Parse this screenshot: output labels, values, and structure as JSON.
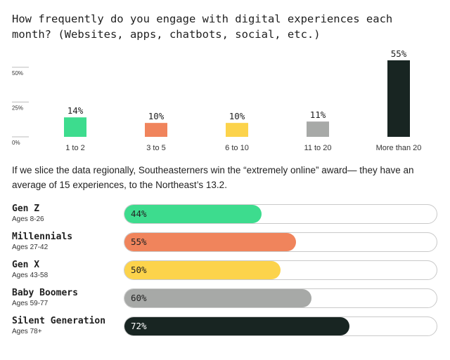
{
  "title": "How frequently do you engage with digital experiences each month? (Websites, apps, chatbots, social, etc.)",
  "note": "If we slice the data regionally, Southeasterners win the “extremely online” award— they have an average of 15 experiences, to the Northeast’s 13.2.",
  "chart_data": [
    {
      "type": "bar",
      "title": "How frequently do you engage with digital experiences each month? (Websites, apps, chatbots, social, etc.)",
      "categories": [
        "1 to 2",
        "3 to 5",
        "6 to 10",
        "11 to 20",
        "More than 20"
      ],
      "values": [
        14,
        10,
        10,
        11,
        55
      ],
      "data_labels": [
        "14%",
        "10%",
        "10%",
        "11%",
        "55%"
      ],
      "colors": [
        "#3ddc8e",
        "#f0845c",
        "#fcd34b",
        "#a7a9a7",
        "#182522"
      ],
      "yticks": [
        {
          "value": 0,
          "label": "0%"
        },
        {
          "value": 25,
          "label": "25%"
        },
        {
          "value": 50,
          "label": "50%"
        }
      ],
      "ylim": [
        0,
        58
      ],
      "grid": false
    },
    {
      "type": "bar",
      "orientation": "horizontal",
      "categories": [
        "Gen Z",
        "Millennials",
        "Gen X",
        "Baby Boomers",
        "Silent Generation"
      ],
      "subtitles": [
        "Ages 8-26",
        "Ages 27-42",
        "Ages 43-58",
        "Ages 59-77",
        "Ages 78+"
      ],
      "values": [
        44,
        55,
        50,
        60,
        72
      ],
      "data_labels": [
        "44%",
        "55%",
        "50%",
        "60%",
        "72%"
      ],
      "colors": [
        "#3ddc8e",
        "#f0845c",
        "#fcd34b",
        "#a7a9a7",
        "#182522"
      ],
      "label_colors": [
        "#222222",
        "#222222",
        "#222222",
        "#222222",
        "#ffffff"
      ],
      "xlim": [
        0,
        100
      ]
    }
  ]
}
